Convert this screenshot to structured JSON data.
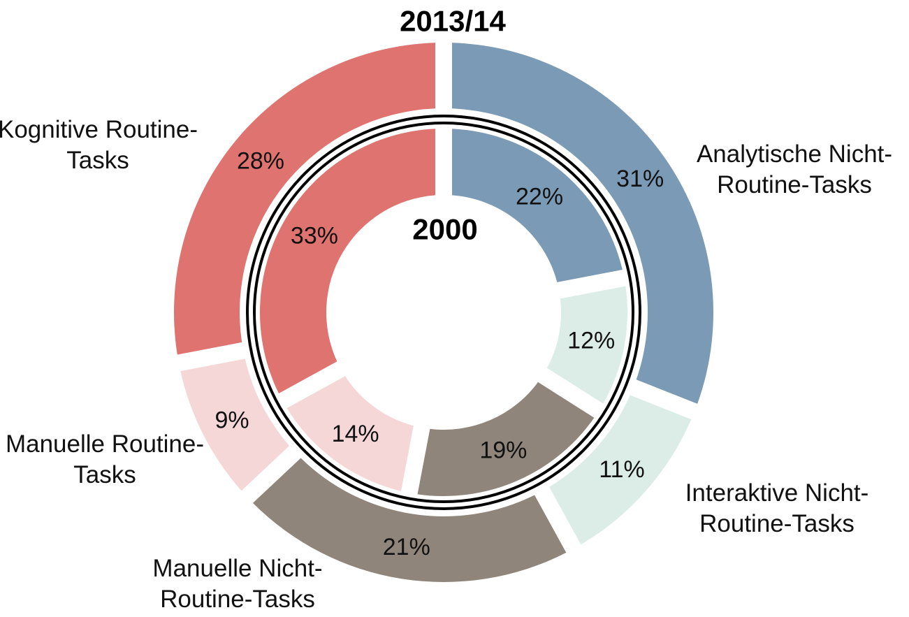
{
  "chart_data": {
    "type": "nested-donut",
    "categories": [
      "Analytische Nicht-Routine-Tasks",
      "Interaktive Nicht-Routine-Tasks",
      "Manuelle Nicht-Routine-Tasks",
      "Manuelle Routine-Tasks",
      "Kognitive Routine-Tasks"
    ],
    "colors": [
      "#7a9ab5",
      "#dcede8",
      "#8f857b",
      "#f5d7d8",
      "#df7370"
    ],
    "series": [
      {
        "name": "2013/14",
        "values": [
          31,
          11,
          21,
          9,
          28
        ],
        "value_labels": [
          "31%",
          "11%",
          "21%",
          "9%",
          "28%"
        ]
      },
      {
        "name": "2000",
        "values": [
          22,
          12,
          19,
          14,
          33
        ],
        "value_labels": [
          "22%",
          "12%",
          "19%",
          "14%",
          "33%"
        ]
      }
    ]
  }
}
